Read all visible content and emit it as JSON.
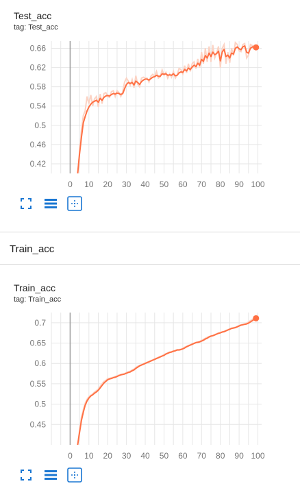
{
  "cards": [
    {
      "title": "Test_acc",
      "tag": "tag: Test_acc",
      "chart_data": {
        "type": "line",
        "title": "Test_acc",
        "xlim": [
          -10,
          102
        ],
        "ylim": [
          0.4,
          0.675
        ],
        "xticks": [
          0,
          10,
          20,
          30,
          40,
          50,
          60,
          70,
          80,
          90,
          100
        ],
        "xtick_labels": [
          "0",
          "10",
          "20",
          "30",
          "40",
          "50",
          "60",
          "70",
          "80",
          "90",
          "100"
        ],
        "yticks": [
          0.42,
          0.46,
          0.5,
          0.54,
          0.58,
          0.62,
          0.66
        ],
        "ytick_labels": [
          "0.42",
          "0.46",
          "0.5",
          "0.54",
          "0.58",
          "0.62",
          "0.66"
        ],
        "grid": true,
        "series": [
          {
            "color": "#ff7043",
            "raw_color": "#fcd3c4",
            "x": [
              4,
              5,
              6,
              7,
              8,
              9,
              10,
              11,
              12,
              13,
              14,
              15,
              16,
              17,
              18,
              19,
              20,
              21,
              22,
              23,
              24,
              25,
              26,
              27,
              28,
              29,
              30,
              31,
              32,
              33,
              34,
              35,
              36,
              37,
              38,
              39,
              40,
              41,
              42,
              43,
              44,
              45,
              46,
              47,
              48,
              49,
              50,
              51,
              52,
              53,
              54,
              55,
              56,
              57,
              58,
              59,
              60,
              61,
              62,
              63,
              64,
              65,
              66,
              67,
              68,
              69,
              70,
              71,
              72,
              73,
              74,
              75,
              76,
              77,
              78,
              79,
              80,
              81,
              82,
              83,
              84,
              85,
              86,
              87,
              88,
              89,
              90,
              91,
              92,
              93,
              94,
              95,
              96,
              97,
              98,
              99
            ],
            "smoothed": [
              0.4,
              0.44,
              0.475,
              0.505,
              0.518,
              0.53,
              0.538,
              0.544,
              0.548,
              0.55,
              0.552,
              0.548,
              0.556,
              0.552,
              0.558,
              0.561,
              0.562,
              0.561,
              0.564,
              0.566,
              0.565,
              0.567,
              0.566,
              0.564,
              0.566,
              0.576,
              0.585,
              0.589,
              0.587,
              0.589,
              0.584,
              0.592,
              0.589,
              0.585,
              0.591,
              0.594,
              0.596,
              0.596,
              0.594,
              0.597,
              0.6,
              0.601,
              0.604,
              0.602,
              0.602,
              0.607,
              0.606,
              0.607,
              0.604,
              0.605,
              0.604,
              0.607,
              0.603,
              0.604,
              0.609,
              0.611,
              0.61,
              0.616,
              0.613,
              0.619,
              0.616,
              0.621,
              0.625,
              0.622,
              0.629,
              0.625,
              0.637,
              0.633,
              0.645,
              0.64,
              0.65,
              0.643,
              0.652,
              0.647,
              0.649,
              0.654,
              0.634,
              0.652,
              0.658,
              0.643,
              0.646,
              0.64,
              0.65,
              0.648,
              0.66,
              0.663,
              0.659,
              0.657,
              0.663,
              0.665,
              0.652,
              0.65,
              0.66,
              0.663,
              0.662,
              0.662
            ],
            "raw": [
              0.395,
              0.445,
              0.49,
              0.52,
              0.53,
              0.56,
              0.545,
              0.563,
              0.54,
              0.555,
              0.56,
              0.538,
              0.565,
              0.545,
              0.566,
              0.568,
              0.56,
              0.558,
              0.57,
              0.572,
              0.56,
              0.572,
              0.568,
              0.56,
              0.57,
              0.59,
              0.598,
              0.592,
              0.583,
              0.595,
              0.578,
              0.603,
              0.585,
              0.58,
              0.598,
              0.6,
              0.598,
              0.598,
              0.59,
              0.602,
              0.606,
              0.602,
              0.612,
              0.598,
              0.601,
              0.615,
              0.604,
              0.61,
              0.598,
              0.607,
              0.6,
              0.612,
              0.598,
              0.605,
              0.618,
              0.616,
              0.607,
              0.624,
              0.609,
              0.628,
              0.612,
              0.628,
              0.632,
              0.618,
              0.638,
              0.62,
              0.652,
              0.628,
              0.66,
              0.632,
              0.664,
              0.632,
              0.667,
              0.64,
              0.65,
              0.664,
              0.62,
              0.66,
              0.668,
              0.628,
              0.652,
              0.63,
              0.66,
              0.645,
              0.672,
              0.668,
              0.655,
              0.653,
              0.668,
              0.67,
              0.64,
              0.646,
              0.668,
              0.666,
              0.662,
              0.662
            ]
          }
        ]
      }
    },
    {
      "title": "Train_acc",
      "tag": "tag: Train_acc",
      "chart_data": {
        "type": "line",
        "title": "Train_acc",
        "xlim": [
          -10,
          102
        ],
        "ylim": [
          0.4,
          0.725
        ],
        "xticks": [
          0,
          10,
          20,
          30,
          40,
          50,
          60,
          70,
          80,
          90,
          100
        ],
        "xtick_labels": [
          "0",
          "10",
          "20",
          "30",
          "40",
          "50",
          "60",
          "70",
          "80",
          "90",
          "100"
        ],
        "yticks": [
          0.45,
          0.5,
          0.55,
          0.6,
          0.65,
          0.7
        ],
        "ytick_labels": [
          "0.45",
          "0.5",
          "0.55",
          "0.6",
          "0.65",
          "0.7"
        ],
        "grid": true,
        "series": [
          {
            "color": "#ff7043",
            "raw_color": "#fcd3c4",
            "x": [
              4,
              5,
              6,
              7,
              8,
              9,
              10,
              11,
              12,
              13,
              14,
              15,
              16,
              17,
              18,
              19,
              20,
              21,
              22,
              23,
              24,
              25,
              26,
              27,
              28,
              29,
              30,
              31,
              32,
              33,
              34,
              35,
              36,
              37,
              38,
              39,
              40,
              41,
              42,
              43,
              44,
              45,
              46,
              47,
              48,
              49,
              50,
              51,
              52,
              53,
              54,
              55,
              56,
              57,
              58,
              59,
              60,
              61,
              62,
              63,
              64,
              65,
              66,
              67,
              68,
              69,
              70,
              71,
              72,
              73,
              74,
              75,
              76,
              77,
              78,
              79,
              80,
              81,
              82,
              83,
              84,
              85,
              86,
              87,
              88,
              89,
              90,
              91,
              92,
              93,
              94,
              95,
              96,
              97,
              98,
              99
            ],
            "smoothed": [
              0.4,
              0.43,
              0.46,
              0.48,
              0.497,
              0.508,
              0.515,
              0.52,
              0.523,
              0.527,
              0.53,
              0.534,
              0.54,
              0.546,
              0.552,
              0.556,
              0.56,
              0.562,
              0.563,
              0.565,
              0.566,
              0.568,
              0.57,
              0.572,
              0.573,
              0.574,
              0.576,
              0.578,
              0.579,
              0.582,
              0.584,
              0.588,
              0.591,
              0.594,
              0.596,
              0.598,
              0.6,
              0.602,
              0.604,
              0.606,
              0.608,
              0.61,
              0.612,
              0.614,
              0.616,
              0.618,
              0.62,
              0.623,
              0.625,
              0.627,
              0.628,
              0.63,
              0.631,
              0.633,
              0.633,
              0.634,
              0.636,
              0.638,
              0.641,
              0.643,
              0.645,
              0.647,
              0.649,
              0.651,
              0.652,
              0.653,
              0.655,
              0.657,
              0.66,
              0.662,
              0.665,
              0.667,
              0.668,
              0.67,
              0.672,
              0.674,
              0.675,
              0.677,
              0.678,
              0.68,
              0.682,
              0.684,
              0.686,
              0.687,
              0.688,
              0.69,
              0.692,
              0.694,
              0.695,
              0.696,
              0.697,
              0.699,
              0.702,
              0.705,
              0.708,
              0.711
            ],
            "raw": [
              0.4,
              0.435,
              0.468,
              0.486,
              0.502,
              0.512,
              0.518,
              0.522,
              0.525,
              0.53,
              0.533,
              0.537,
              0.544,
              0.55,
              0.556,
              0.558,
              0.563,
              0.563,
              0.565,
              0.566,
              0.568,
              0.569,
              0.572,
              0.573,
              0.574,
              0.575,
              0.578,
              0.579,
              0.581,
              0.584,
              0.586,
              0.59,
              0.593,
              0.595,
              0.597,
              0.599,
              0.601,
              0.603,
              0.605,
              0.607,
              0.609,
              0.611,
              0.613,
              0.615,
              0.617,
              0.619,
              0.622,
              0.624,
              0.626,
              0.628,
              0.629,
              0.631,
              0.632,
              0.634,
              0.634,
              0.635,
              0.637,
              0.64,
              0.642,
              0.644,
              0.646,
              0.648,
              0.65,
              0.652,
              0.653,
              0.654,
              0.657,
              0.659,
              0.662,
              0.664,
              0.666,
              0.668,
              0.669,
              0.671,
              0.673,
              0.675,
              0.676,
              0.678,
              0.679,
              0.681,
              0.683,
              0.685,
              0.687,
              0.688,
              0.689,
              0.691,
              0.693,
              0.695,
              0.696,
              0.697,
              0.699,
              0.702,
              0.705,
              0.708,
              0.712,
              0.712
            ]
          }
        ]
      }
    }
  ],
  "section": {
    "title": "Train_acc"
  },
  "toolbar": {
    "icons": [
      "fullscreen-icon",
      "data-table-icon",
      "fit-domain-icon"
    ],
    "color": "#1976d2"
  }
}
